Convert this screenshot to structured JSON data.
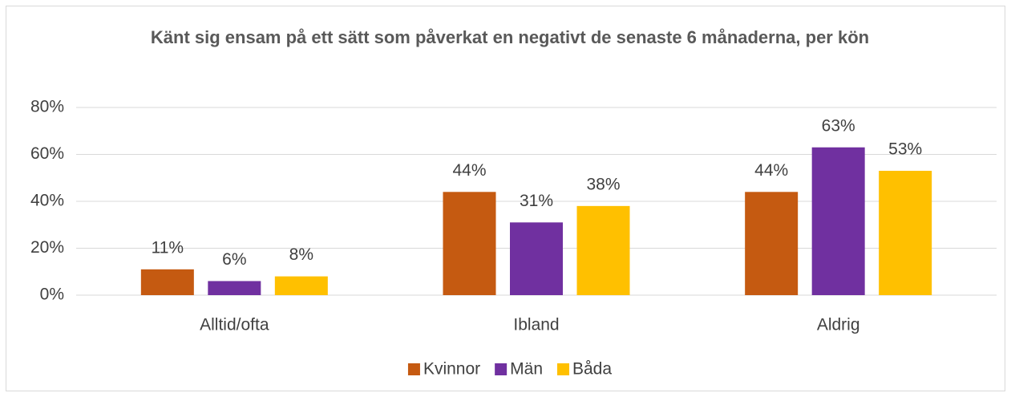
{
  "chart_data": {
    "type": "bar",
    "title": "Känt sig ensam på ett sätt som påverkat en negativt de senaste 6 månaderna, per kön",
    "categories": [
      "Alltid/ofta",
      "Ibland",
      "Aldrig"
    ],
    "series": [
      {
        "name": "Kvinnor",
        "color": "#c55a11",
        "values": [
          11,
          44,
          44
        ],
        "value_labels": [
          "11%",
          "44%",
          "44%"
        ]
      },
      {
        "name": "Män",
        "color": "#7030a0",
        "values": [
          6,
          31,
          63
        ],
        "value_labels": [
          "6%",
          "31%",
          "63%"
        ]
      },
      {
        "name": "Båda",
        "color": "#ffc000",
        "values": [
          8,
          38,
          53
        ],
        "value_labels": [
          "8%",
          "38%",
          "53%"
        ]
      }
    ],
    "ylim": [
      0,
      80
    ],
    "yticks": [
      {
        "value": 0,
        "label": "0%"
      },
      {
        "value": 20,
        "label": "20%"
      },
      {
        "value": 40,
        "label": "40%"
      },
      {
        "value": 60,
        "label": "60%"
      },
      {
        "value": 80,
        "label": "80%"
      }
    ],
    "grid": true,
    "legend": "bottom"
  }
}
